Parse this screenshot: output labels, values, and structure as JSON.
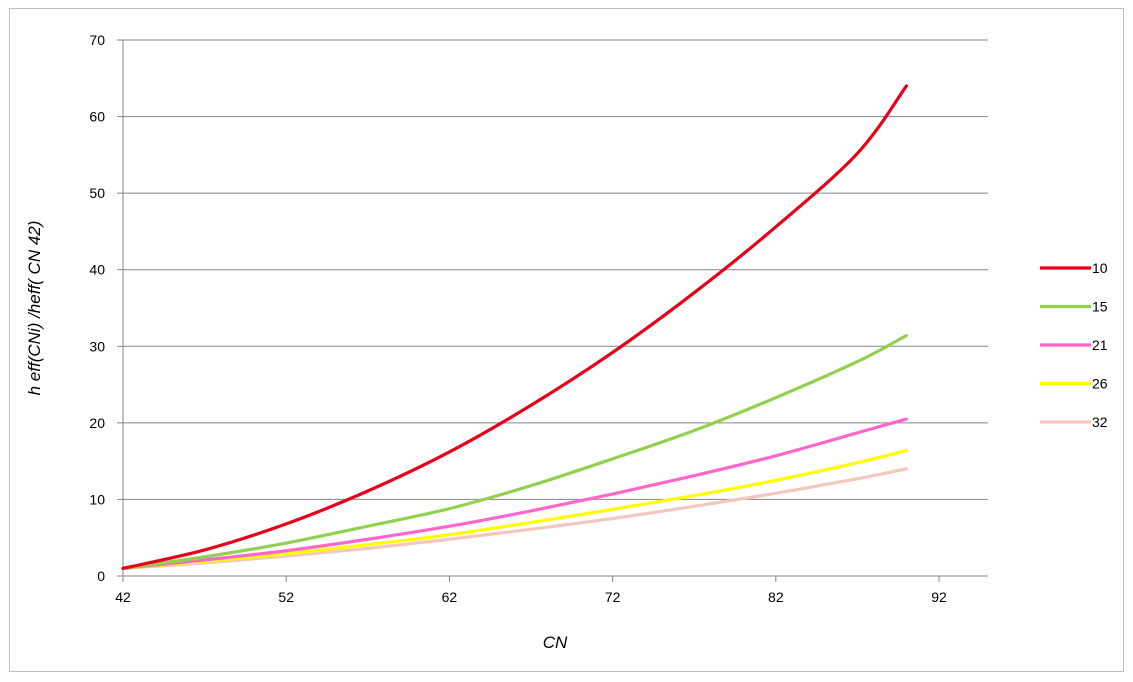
{
  "chart_data": {
    "type": "line",
    "title": "",
    "xlabel": "CN",
    "ylabel": "h eff(CNi) /heff( CN 42)",
    "xlim": [
      42,
      95
    ],
    "ylim": [
      0,
      70
    ],
    "x_ticks": [
      "42",
      "52",
      "62",
      "72",
      "82",
      "92"
    ],
    "y_ticks": [
      "0",
      "10",
      "20",
      "30",
      "40",
      "50",
      "60",
      "70"
    ],
    "grid": "horizontal",
    "legend_position": "right",
    "series": [
      {
        "name": "10",
        "color": "#e6001a",
        "points": [
          [
            42,
            1.0
          ],
          [
            47,
            3.4
          ],
          [
            52,
            6.8
          ],
          [
            57,
            11.1
          ],
          [
            62,
            16.2
          ],
          [
            67,
            22.3
          ],
          [
            72,
            29.2
          ],
          [
            77,
            37.0
          ],
          [
            82,
            45.6
          ],
          [
            87,
            55.2
          ],
          [
            90,
            64.0
          ]
        ]
      },
      {
        "name": "15",
        "color": "#92d050",
        "points": [
          [
            42,
            1.0
          ],
          [
            47,
            2.5
          ],
          [
            52,
            4.3
          ],
          [
            57,
            6.5
          ],
          [
            62,
            8.8
          ],
          [
            67,
            11.8
          ],
          [
            72,
            15.3
          ],
          [
            77,
            19.0
          ],
          [
            82,
            23.3
          ],
          [
            87,
            28.0
          ],
          [
            90,
            31.4
          ]
        ]
      },
      {
        "name": "21",
        "color": "#ff66cc",
        "points": [
          [
            42,
            1.0
          ],
          [
            47,
            2.1
          ],
          [
            52,
            3.3
          ],
          [
            57,
            4.8
          ],
          [
            62,
            6.5
          ],
          [
            67,
            8.5
          ],
          [
            72,
            10.7
          ],
          [
            77,
            13.1
          ],
          [
            82,
            15.7
          ],
          [
            87,
            18.7
          ],
          [
            90,
            20.5
          ]
        ]
      },
      {
        "name": "26",
        "color": "#ffff00",
        "points": [
          [
            42,
            1.0
          ],
          [
            47,
            1.9
          ],
          [
            52,
            2.9
          ],
          [
            57,
            4.1
          ],
          [
            62,
            5.4
          ],
          [
            67,
            7.0
          ],
          [
            72,
            8.7
          ],
          [
            77,
            10.5
          ],
          [
            82,
            12.5
          ],
          [
            87,
            14.8
          ],
          [
            90,
            16.4
          ]
        ]
      },
      {
        "name": "32",
        "color": "#f4c7bc",
        "points": [
          [
            42,
            1.0
          ],
          [
            47,
            1.7
          ],
          [
            52,
            2.6
          ],
          [
            57,
            3.6
          ],
          [
            62,
            4.8
          ],
          [
            67,
            6.1
          ],
          [
            72,
            7.5
          ],
          [
            77,
            9.1
          ],
          [
            82,
            10.8
          ],
          [
            87,
            12.7
          ],
          [
            90,
            14.0
          ]
        ]
      }
    ]
  }
}
